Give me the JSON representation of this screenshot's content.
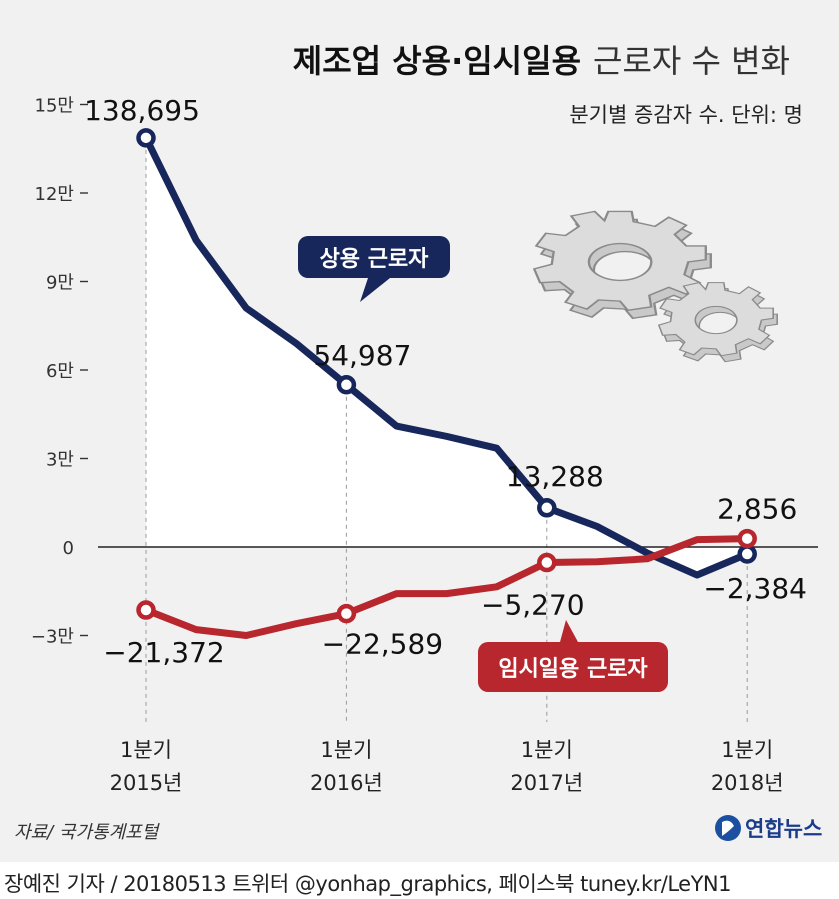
{
  "title_bold": "제조업 상용·임시일용",
  "title_light": "근로자 수 변화",
  "subtitle": "분기별 증감자 수. 단위: 명",
  "source": "자료/ 국가통계포털",
  "logo_text": "연합뉴스",
  "credit": "장예진 기자 / 20180513 트위터 @yonhap_graphics, 페이스북 tuney.kr/LeYN1",
  "colors": {
    "regular": "#17275c",
    "temporary": "#b8262e",
    "background": "#f1f1f1",
    "gear": "#cdcdcd"
  },
  "icons": [
    "gears-icon",
    "yonhap-logo-icon"
  ],
  "chart_data": {
    "type": "line",
    "ylim": [
      -30000,
      150000
    ],
    "y_ticks": [
      -30000,
      0,
      30000,
      60000,
      90000,
      120000,
      150000
    ],
    "y_tick_labels": [
      "−3만",
      "0",
      "3만",
      "6만",
      "9만",
      "12만",
      "15만"
    ],
    "x": [
      0,
      1,
      2,
      3,
      4,
      5,
      6,
      7,
      8,
      9,
      10,
      11,
      12
    ],
    "x_tick_positions": [
      0,
      4,
      8,
      12
    ],
    "x_tick_labels": [
      {
        "quarter": "1분기",
        "year": "2015년"
      },
      {
        "quarter": "1분기",
        "year": "2016년"
      },
      {
        "quarter": "1분기",
        "year": "2017년"
      },
      {
        "quarter": "1분기",
        "year": "2018년"
      }
    ],
    "series": [
      {
        "name": "상용 근로자",
        "color": "#17275c",
        "values": [
          138695,
          104000,
          81000,
          69000,
          54987,
          41000,
          37500,
          33500,
          13288,
          7000,
          -2000,
          -9500,
          -2384
        ],
        "labeled": [
          {
            "index": 0,
            "text": "138,695"
          },
          {
            "index": 4,
            "text": "54,987"
          },
          {
            "index": 8,
            "text": "13,288"
          },
          {
            "index": 12,
            "text": "−2,384"
          }
        ]
      },
      {
        "name": "임시일용 근로자",
        "color": "#b8262e",
        "values": [
          -21372,
          -28000,
          -30000,
          -26000,
          -22589,
          -15800,
          -15800,
          -13500,
          -5270,
          -5000,
          -4000,
          2500,
          2856
        ],
        "labeled": [
          {
            "index": 0,
            "text": "−21,372"
          },
          {
            "index": 4,
            "text": "−22,589"
          },
          {
            "index": 8,
            "text": "−5,270"
          },
          {
            "index": 12,
            "text": "2,856"
          }
        ]
      }
    ]
  }
}
